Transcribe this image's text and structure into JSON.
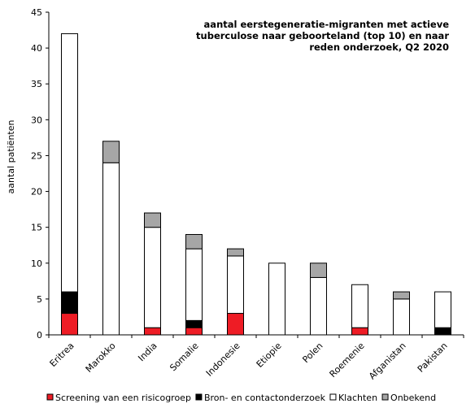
{
  "chart_data": {
    "type": "bar",
    "stacked": true,
    "title_lines": [
      "aantal eerstegeneratie-migranten met actieve",
      "tuberculose naar geboorteland (top 10) en naar",
      "reden onderzoek, Q2 2020"
    ],
    "ylabel": "aantal patiënten",
    "xlabel": "",
    "ylim": [
      0,
      45
    ],
    "yticks": [
      0,
      5,
      10,
      15,
      20,
      25,
      30,
      35,
      40,
      45
    ],
    "grid": false,
    "legend_position": "bottom",
    "categories": [
      "Eritrea",
      "Marokko",
      "India",
      "Somalie",
      "Indonesie",
      "Etiopie",
      "Polen",
      "Roemenie",
      "Afganistan",
      "Pakistan"
    ],
    "series": [
      {
        "name": "Screening van een risicogroep",
        "color": "#ee1c25",
        "values": [
          3,
          0,
          1,
          1,
          3,
          0,
          0,
          1,
          0,
          0
        ]
      },
      {
        "name": "Bron- en contactonderzoek",
        "color": "#000000",
        "values": [
          3,
          0,
          0,
          1,
          0,
          0,
          0,
          0,
          0,
          1
        ]
      },
      {
        "name": "Klachten",
        "color": "#ffffff",
        "values": [
          36,
          24,
          14,
          10,
          8,
          10,
          8,
          6,
          5,
          5
        ]
      },
      {
        "name": "Onbekend",
        "color": "#a6a6a6",
        "values": [
          0,
          3,
          2,
          2,
          1,
          0,
          2,
          0,
          1,
          0
        ]
      }
    ]
  }
}
